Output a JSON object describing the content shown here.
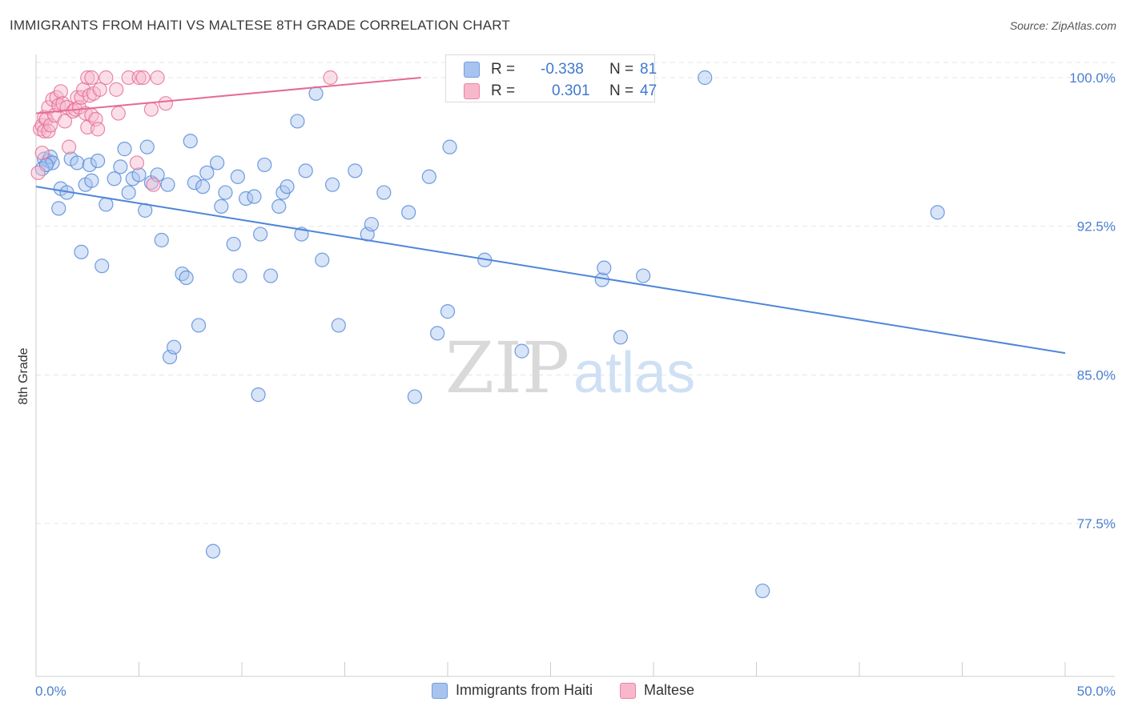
{
  "title": "IMMIGRANTS FROM HAITI VS MALTESE 8TH GRADE CORRELATION CHART",
  "source": "Source: ZipAtlas.com",
  "watermark": {
    "zip": "ZIP",
    "atlas": "atlas"
  },
  "legend_stats": {
    "rows": [
      {
        "r_label": "R =",
        "r_value": "-0.338",
        "n_label": "N =",
        "n_value": "81",
        "color": "#a8c4ee",
        "border": "#6f9ee0"
      },
      {
        "r_label": "R =",
        "r_value": "0.301",
        "n_label": "N =",
        "n_value": "47",
        "color": "#f7b8cc",
        "border": "#ec82a4"
      }
    ]
  },
  "legend_bottom": [
    {
      "label": "Immigrants from Haiti",
      "color": "#a8c4ee",
      "border": "#6f9ee0"
    },
    {
      "label": "Maltese",
      "color": "#f7b8cc",
      "border": "#ec82a4"
    }
  ],
  "chart_data": {
    "type": "scatter",
    "title": "IMMIGRANTS FROM HAITI VS MALTESE 8TH GRADE CORRELATION CHART",
    "xlabel": "",
    "ylabel": "8th Grade",
    "xlim": [
      0,
      50
    ],
    "ylim": [
      70.8,
      100.8
    ],
    "x_tick_labels": [
      "0.0%",
      "50.0%"
    ],
    "y_ticks": [
      77.5,
      85.0,
      92.5,
      100.0
    ],
    "y_tick_labels": [
      "77.5%",
      "85.0%",
      "92.5%",
      "100.0%"
    ],
    "grid": true,
    "series": [
      {
        "name": "Immigrants from Haiti",
        "color": "#4f86d8",
        "fill": "#a8c4ee",
        "trend": {
          "x0": 0,
          "y0": 94.5,
          "x1": 50,
          "y1": 86.1
        },
        "points": [
          [
            0.4,
            95.9
          ],
          [
            0.6,
            95.8
          ],
          [
            0.7,
            96.0
          ],
          [
            0.8,
            95.7
          ],
          [
            1.1,
            93.4
          ],
          [
            1.2,
            94.4
          ],
          [
            1.5,
            94.2
          ],
          [
            1.7,
            95.9
          ],
          [
            2.0,
            95.7
          ],
          [
            2.2,
            91.2
          ],
          [
            2.4,
            94.6
          ],
          [
            2.6,
            95.6
          ],
          [
            2.7,
            94.8
          ],
          [
            3.0,
            95.8
          ],
          [
            3.2,
            90.5
          ],
          [
            3.4,
            93.6
          ],
          [
            3.8,
            94.9
          ],
          [
            4.1,
            95.5
          ],
          [
            4.3,
            96.4
          ],
          [
            4.5,
            94.2
          ],
          [
            4.7,
            94.9
          ],
          [
            5.0,
            95.1
          ],
          [
            5.3,
            93.3
          ],
          [
            5.4,
            96.5
          ],
          [
            5.6,
            94.7
          ],
          [
            5.9,
            95.1
          ],
          [
            6.1,
            91.8
          ],
          [
            6.4,
            94.6
          ],
          [
            6.5,
            85.9
          ],
          [
            6.7,
            86.4
          ],
          [
            7.1,
            90.1
          ],
          [
            7.3,
            89.9
          ],
          [
            7.5,
            96.8
          ],
          [
            7.7,
            94.7
          ],
          [
            7.9,
            87.5
          ],
          [
            8.1,
            94.5
          ],
          [
            8.3,
            95.2
          ],
          [
            8.6,
            76.1
          ],
          [
            8.8,
            95.7
          ],
          [
            9.0,
            93.5
          ],
          [
            9.2,
            94.2
          ],
          [
            9.6,
            91.6
          ],
          [
            9.8,
            95.0
          ],
          [
            9.9,
            90.0
          ],
          [
            10.2,
            93.9
          ],
          [
            10.6,
            94.0
          ],
          [
            10.8,
            84.0
          ],
          [
            10.9,
            92.1
          ],
          [
            11.1,
            95.6
          ],
          [
            11.4,
            90.0
          ],
          [
            11.8,
            93.5
          ],
          [
            12.0,
            94.2
          ],
          [
            12.2,
            94.5
          ],
          [
            12.7,
            97.8
          ],
          [
            12.9,
            92.1
          ],
          [
            13.1,
            95.3
          ],
          [
            13.6,
            99.2
          ],
          [
            13.9,
            90.8
          ],
          [
            14.4,
            94.6
          ],
          [
            14.7,
            87.5
          ],
          [
            15.5,
            95.3
          ],
          [
            16.1,
            92.1
          ],
          [
            16.3,
            92.6
          ],
          [
            16.9,
            94.2
          ],
          [
            18.1,
            93.2
          ],
          [
            18.4,
            83.9
          ],
          [
            19.1,
            95.0
          ],
          [
            19.5,
            87.1
          ],
          [
            20.0,
            88.2
          ],
          [
            20.1,
            96.5
          ],
          [
            21.8,
            90.8
          ],
          [
            23.6,
            86.2
          ],
          [
            27.5,
            89.8
          ],
          [
            27.6,
            90.4
          ],
          [
            28.4,
            86.9
          ],
          [
            29.5,
            90.0
          ],
          [
            32.5,
            100.0
          ],
          [
            35.3,
            74.1
          ],
          [
            43.8,
            93.2
          ],
          [
            0.3,
            95.4
          ],
          [
            0.5,
            95.6
          ]
        ]
      },
      {
        "name": "Maltese",
        "color": "#e56a92",
        "fill": "#f7b8cc",
        "trend": {
          "x0": 0,
          "y0": 98.2,
          "x1": 18.7,
          "y1": 100.0
        },
        "points": [
          [
            0.1,
            95.2
          ],
          [
            0.2,
            97.4
          ],
          [
            0.3,
            97.6
          ],
          [
            0.4,
            98.0
          ],
          [
            0.4,
            97.3
          ],
          [
            0.5,
            97.9
          ],
          [
            0.6,
            97.3
          ],
          [
            0.6,
            98.5
          ],
          [
            0.7,
            97.6
          ],
          [
            0.8,
            98.9
          ],
          [
            0.9,
            98.1
          ],
          [
            1.0,
            99.0
          ],
          [
            1.1,
            98.6
          ],
          [
            1.2,
            99.3
          ],
          [
            1.3,
            98.7
          ],
          [
            1.4,
            97.8
          ],
          [
            1.5,
            98.5
          ],
          [
            1.6,
            96.5
          ],
          [
            1.8,
            98.3
          ],
          [
            1.9,
            98.4
          ],
          [
            2.0,
            99.0
          ],
          [
            2.1,
            98.5
          ],
          [
            2.2,
            99.0
          ],
          [
            2.3,
            99.4
          ],
          [
            2.4,
            98.2
          ],
          [
            2.5,
            100.0
          ],
          [
            2.5,
            97.5
          ],
          [
            2.6,
            99.1
          ],
          [
            2.7,
            98.1
          ],
          [
            2.7,
            100.0
          ],
          [
            2.8,
            99.2
          ],
          [
            2.9,
            97.9
          ],
          [
            3.0,
            97.4
          ],
          [
            3.1,
            99.4
          ],
          [
            3.4,
            100.0
          ],
          [
            3.9,
            99.4
          ],
          [
            4.0,
            98.2
          ],
          [
            4.5,
            100.0
          ],
          [
            4.9,
            95.7
          ],
          [
            5.0,
            100.0
          ],
          [
            5.2,
            100.0
          ],
          [
            5.6,
            98.4
          ],
          [
            5.7,
            94.6
          ],
          [
            5.9,
            100.0
          ],
          [
            6.3,
            98.7
          ],
          [
            14.3,
            100.0
          ],
          [
            0.3,
            96.2
          ]
        ]
      }
    ]
  }
}
